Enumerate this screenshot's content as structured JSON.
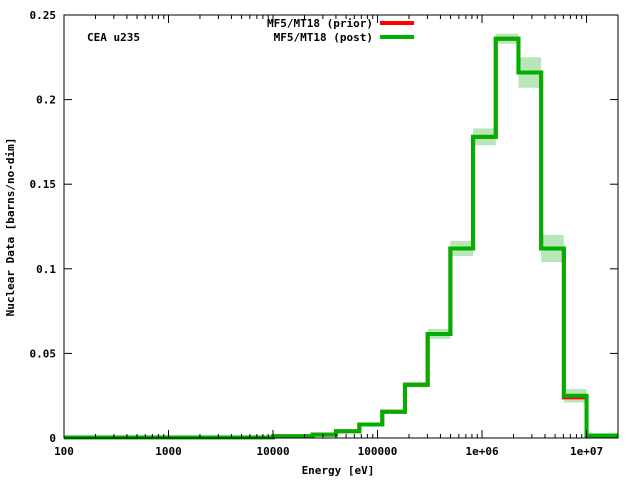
{
  "chart_data": {
    "type": "line",
    "step": true,
    "title": "",
    "annotation": "CEA u235",
    "xlabel": "Energy [eV]",
    "ylabel": "Nuclear Data [barns/no-dim]",
    "xscale": "log",
    "xlim": [
      100,
      20000000
    ],
    "ylim": [
      0,
      0.25
    ],
    "grid": false,
    "legend_position": "top-center",
    "x_ticks": [
      {
        "value": 100,
        "label": "100"
      },
      {
        "value": 1000,
        "label": "1000"
      },
      {
        "value": 10000,
        "label": "10000"
      },
      {
        "value": 100000,
        "label": "100000"
      },
      {
        "value": 1000000,
        "label": "1e+06"
      },
      {
        "value": 10000000,
        "label": "1e+07"
      }
    ],
    "y_ticks": [
      {
        "value": 0,
        "label": "0"
      },
      {
        "value": 0.05,
        "label": "0.05"
      },
      {
        "value": 0.1,
        "label": "0.1"
      },
      {
        "value": 0.15,
        "label": "0.15"
      },
      {
        "value": 0.2,
        "label": "0.2"
      },
      {
        "value": 0.25,
        "label": "0.25"
      }
    ],
    "bin_edges": [
      100,
      10000,
      24000,
      40000,
      67000,
      111000,
      183000,
      302000,
      498000,
      821000,
      1353000,
      2231000,
      3679000,
      6065000,
      10000000,
      20000000
    ],
    "series": [
      {
        "name": "MF5/MT18 (prior)",
        "color": "#ff0000",
        "values": [
          0.0003,
          0.001,
          0.002,
          0.004,
          0.008,
          0.0155,
          0.0315,
          0.0615,
          0.112,
          0.178,
          0.236,
          0.216,
          0.112,
          0.024,
          0.0015
        ]
      },
      {
        "name": "MF5/MT18 (post)",
        "color": "#00b000",
        "band_color": "#a8e0a8",
        "values": [
          0.0003,
          0.001,
          0.002,
          0.004,
          0.008,
          0.0155,
          0.0315,
          0.0615,
          0.112,
          0.178,
          0.236,
          0.216,
          0.112,
          0.025,
          0.0015
        ],
        "uncertainty": [
          0.0,
          0.0,
          0.0002,
          0.0003,
          0.0004,
          0.0006,
          0.0015,
          0.003,
          0.0045,
          0.005,
          0.003,
          0.009,
          0.008,
          0.004,
          0.0
        ]
      }
    ]
  }
}
